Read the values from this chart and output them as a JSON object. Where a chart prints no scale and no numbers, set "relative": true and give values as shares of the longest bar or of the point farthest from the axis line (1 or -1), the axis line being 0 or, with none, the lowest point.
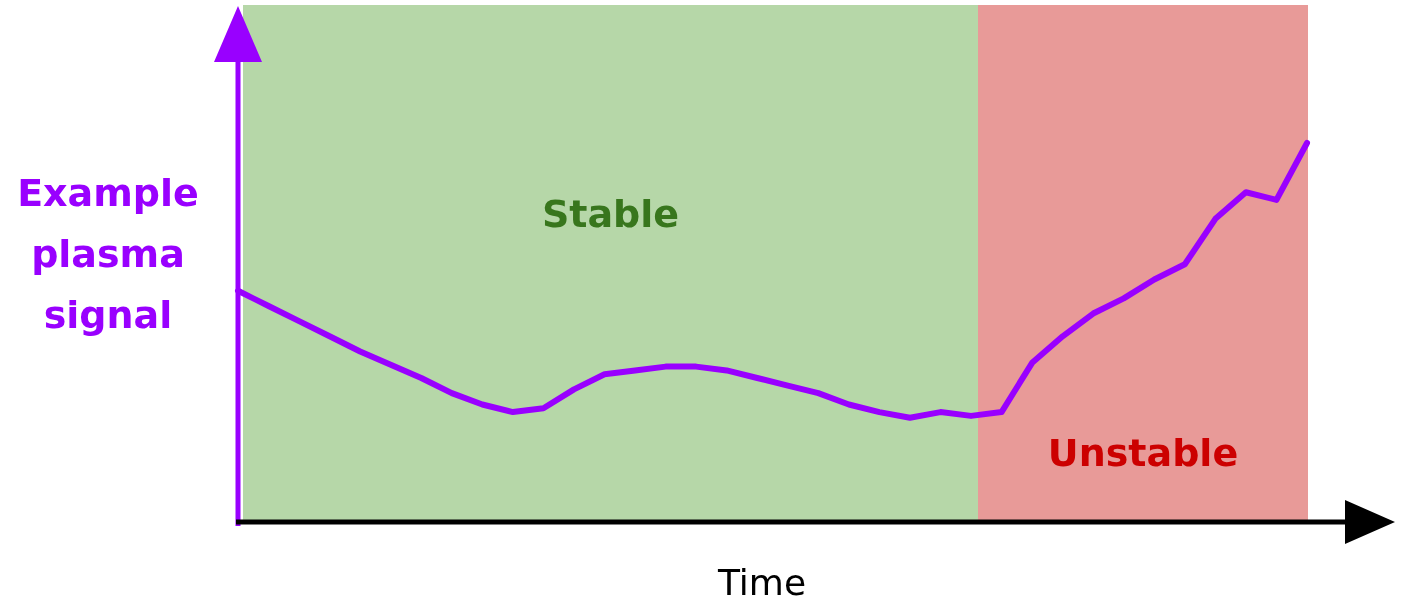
{
  "chart_data": {
    "type": "line",
    "relative": true,
    "xlabel": "Time",
    "ylabel": "Example plasma signal",
    "categories": [
      null,
      null,
      null,
      null,
      null,
      null,
      null,
      null,
      null,
      null,
      null,
      null,
      null,
      null,
      null,
      null,
      null,
      null,
      null,
      null,
      null,
      null,
      null,
      null,
      null,
      null,
      null,
      null,
      null,
      null,
      null,
      null,
      null,
      null,
      null,
      null
    ],
    "series": [
      {
        "color": "#9900ff",
        "values": [
          0.61,
          0.57,
          0.53,
          0.49,
          0.45,
          0.415,
          0.38,
          0.34,
          0.31,
          0.29,
          0.3,
          0.35,
          0.39,
          0.4,
          0.41,
          0.41,
          0.4,
          0.38,
          0.36,
          0.34,
          0.31,
          0.29,
          0.275,
          0.29,
          0.28,
          0.29,
          0.42,
          0.49,
          0.55,
          0.59,
          0.64,
          0.68,
          0.8,
          0.87,
          0.85,
          1
        ]
      }
    ],
    "annotations": [
      "Stable",
      "Unstable"
    ]
  }
}
